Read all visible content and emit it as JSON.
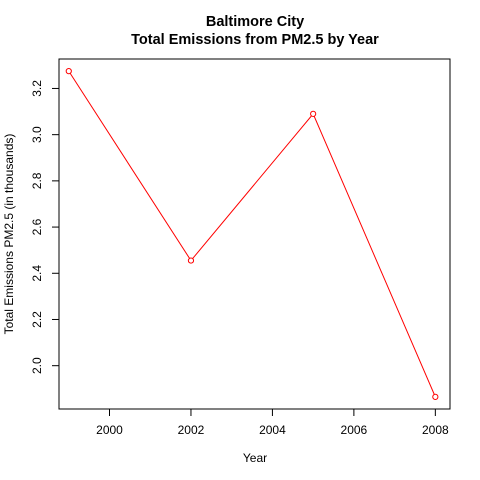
{
  "chart_data": {
    "type": "line",
    "title": "Baltimore City",
    "subtitle": "Total Emissions from PM2.5 by Year",
    "xlabel": "Year",
    "ylabel": "Total Emissions PM2.5 (in thousands)",
    "x": [
      1999,
      2002,
      2005,
      2008
    ],
    "series": [
      {
        "values": [
          3.275,
          2.455,
          3.09,
          1.865
        ]
      }
    ],
    "xlim": [
      1998.76,
      2008.36
    ],
    "ylim": [
      1.8125,
      3.3275
    ],
    "xticks": [
      2000,
      2002,
      2004,
      2006,
      2008
    ],
    "xtick_labels": [
      "2000",
      "2002",
      "2004",
      "2006",
      "2008"
    ],
    "yticks": [
      2.0,
      2.2,
      2.4,
      2.6,
      2.8,
      3.0,
      3.2
    ],
    "ytick_labels": [
      "2.0",
      "2.2",
      "2.4",
      "2.6",
      "2.8",
      "3.0",
      "3.2"
    ],
    "grid": false,
    "colors": {
      "line": "#ff0000",
      "marker": "#ff0000"
    },
    "marker": "open-circle"
  }
}
